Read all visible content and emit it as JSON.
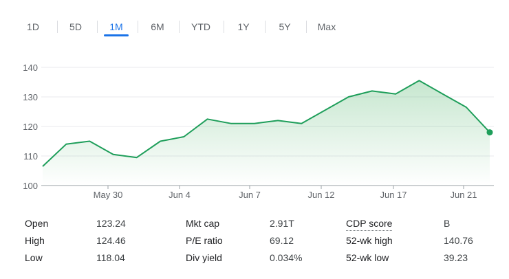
{
  "tabs": [
    {
      "label": "1D",
      "active": false
    },
    {
      "label": "5D",
      "active": false
    },
    {
      "label": "1M",
      "active": true
    },
    {
      "label": "6M",
      "active": false
    },
    {
      "label": "YTD",
      "active": false
    },
    {
      "label": "1Y",
      "active": false
    },
    {
      "label": "5Y",
      "active": false
    },
    {
      "label": "Max",
      "active": false
    }
  ],
  "colors": {
    "accent": "#1a73e8",
    "line": "#1e9e5a",
    "fill": "#34a853"
  },
  "chart_data": {
    "type": "area",
    "title": "",
    "xlabel": "",
    "ylabel": "",
    "ylim": [
      100,
      140
    ],
    "yticks": [
      100,
      110,
      120,
      130,
      140
    ],
    "grid": true,
    "x_tick_labels": [
      "May 30",
      "Jun 4",
      "Jun 7",
      "Jun 12",
      "Jun 17",
      "Jun 21"
    ],
    "series": [
      {
        "values": [
          106.5,
          114,
          115,
          110.5,
          109.5,
          115,
          116.5,
          122.5,
          121,
          121,
          122,
          121,
          125.5,
          130,
          132,
          131,
          135.5,
          131,
          126.5,
          118
        ]
      }
    ]
  },
  "stats": [
    [
      {
        "label": "Open",
        "value": "123.24"
      },
      {
        "label": "High",
        "value": "124.46"
      },
      {
        "label": "Low",
        "value": "118.04"
      }
    ],
    [
      {
        "label": "Mkt cap",
        "value": "2.91T"
      },
      {
        "label": "P/E ratio",
        "value": "69.12"
      },
      {
        "label": "Div yield",
        "value": "0.034%"
      }
    ],
    [
      {
        "label": "CDP score",
        "value": "B"
      },
      {
        "label": "52-wk high",
        "value": "140.76"
      },
      {
        "label": "52-wk low",
        "value": "39.23"
      }
    ]
  ]
}
